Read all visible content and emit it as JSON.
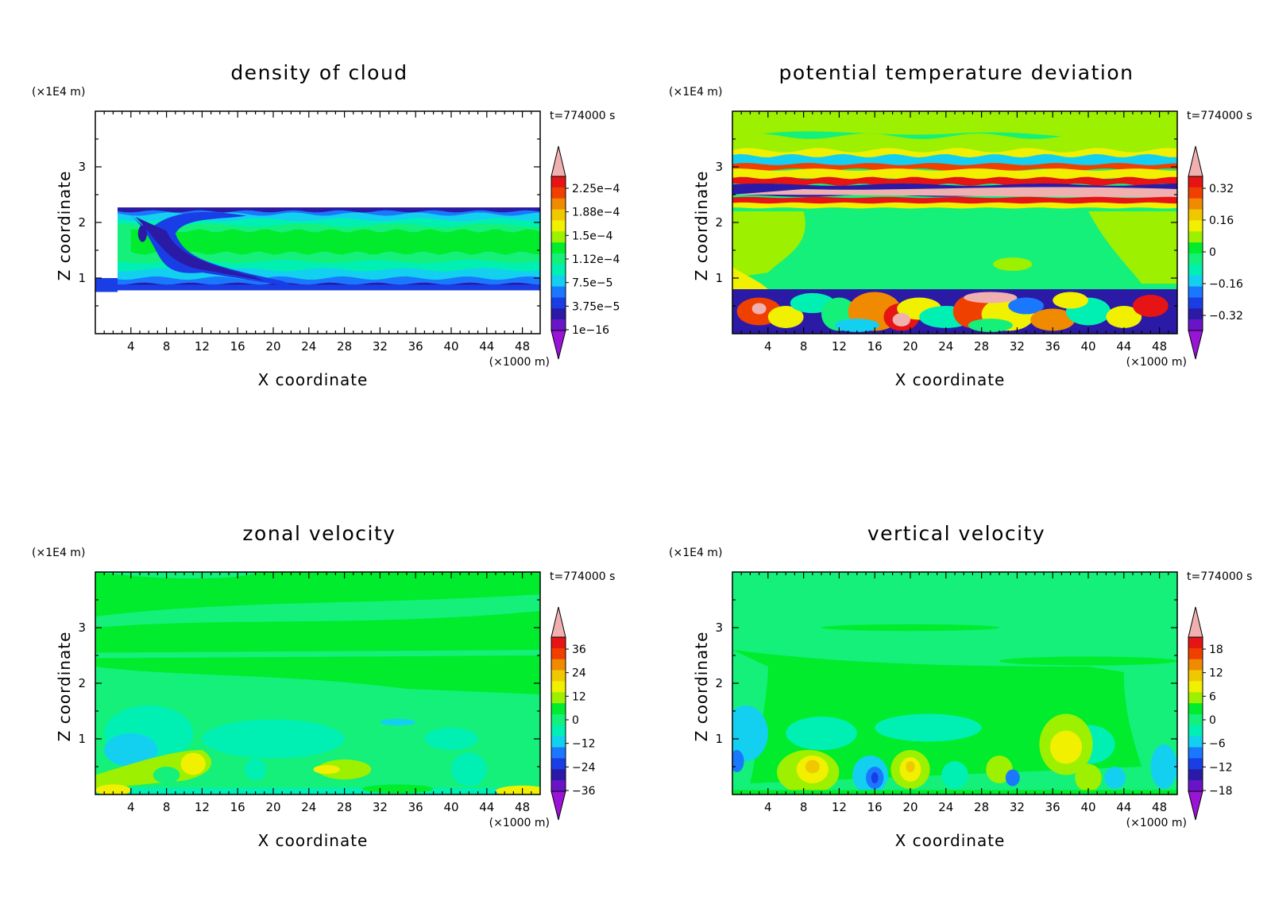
{
  "figure": {
    "panels": [
      {
        "id": "cloud",
        "title": "density of cloud",
        "time_label": "t=774000 s",
        "z_unit": "(×1E4 m)",
        "x_unit": "(×1000 m)",
        "xlabel": "X coordinate",
        "ylabel": "Z coordinate",
        "colorbar_labels": [
          "2.25e−4",
          "1.88e−4",
          "1.5e−4",
          "1.12e−4",
          "7.5e−5",
          "3.75e−5",
          "1e−16"
        ]
      },
      {
        "id": "theta",
        "title": "potential temperature deviation",
        "time_label": "t=774000 s",
        "z_unit": "(×1E4 m)",
        "x_unit": "(×1000 m)",
        "xlabel": "X coordinate",
        "ylabel": "Z coordinate",
        "colorbar_labels": [
          "0.32",
          "0.16",
          "0",
          "−0.16",
          "−0.32"
        ]
      },
      {
        "id": "u",
        "title": "zonal velocity",
        "time_label": "t=774000 s",
        "z_unit": "(×1E4 m)",
        "x_unit": "(×1000 m)",
        "xlabel": "X coordinate",
        "ylabel": "Z coordinate",
        "colorbar_labels": [
          "36",
          "24",
          "12",
          "0",
          "−12",
          "−24",
          "−36"
        ]
      },
      {
        "id": "w",
        "title": "vertical velocity",
        "time_label": "t=774000 s",
        "z_unit": "(×1E4 m)",
        "x_unit": "(×1000 m)",
        "xlabel": "X coordinate",
        "ylabel": "Z coordinate",
        "colorbar_labels": [
          "18",
          "12",
          "6",
          "0",
          "−6",
          "−12",
          "−18"
        ]
      }
    ]
  },
  "chart_data": [
    {
      "type": "heatmap",
      "title": "density of cloud",
      "xlabel": "X coordinate",
      "ylabel": "Z coordinate",
      "x_ticks": [
        4,
        8,
        12,
        16,
        20,
        24,
        28,
        32,
        36,
        40,
        44,
        48
      ],
      "y_ticks": [
        1,
        2,
        3
      ],
      "xlim": [
        0,
        50
      ],
      "ylim": [
        0,
        4
      ],
      "colorbar_ticks": [
        0.000225,
        0.000188,
        0.00015,
        0.000112,
        7.5e-05,
        3.75e-05,
        1e-16
      ],
      "cloud_layer_z": [
        0.8,
        2.25
      ]
    },
    {
      "type": "heatmap",
      "title": "potential temperature deviation",
      "xlabel": "X coordinate",
      "ylabel": "Z coordinate",
      "x_ticks": [
        4,
        8,
        12,
        16,
        20,
        24,
        28,
        32,
        36,
        40,
        44,
        48
      ],
      "y_ticks": [
        1,
        2,
        3
      ],
      "xlim": [
        0,
        50
      ],
      "ylim": [
        0,
        4
      ],
      "colorbar_ticks": [
        0.32,
        0.16,
        0,
        -0.16,
        -0.32
      ]
    },
    {
      "type": "heatmap",
      "title": "zonal velocity",
      "xlabel": "X coordinate",
      "ylabel": "Z coordinate",
      "x_ticks": [
        4,
        8,
        12,
        16,
        20,
        24,
        28,
        32,
        36,
        40,
        44,
        48
      ],
      "y_ticks": [
        1,
        2,
        3
      ],
      "xlim": [
        0,
        50
      ],
      "ylim": [
        0,
        4
      ],
      "colorbar_ticks": [
        36,
        24,
        12,
        0,
        -12,
        -24,
        -36
      ]
    },
    {
      "type": "heatmap",
      "title": "vertical velocity",
      "xlabel": "X coordinate",
      "ylabel": "Z coordinate",
      "x_ticks": [
        4,
        8,
        12,
        16,
        20,
        24,
        28,
        32,
        36,
        40,
        44,
        48
      ],
      "y_ticks": [
        1,
        2,
        3
      ],
      "xlim": [
        0,
        50
      ],
      "ylim": [
        0,
        4
      ],
      "colorbar_ticks": [
        18,
        12,
        6,
        0,
        -6,
        -12,
        -18
      ]
    }
  ]
}
